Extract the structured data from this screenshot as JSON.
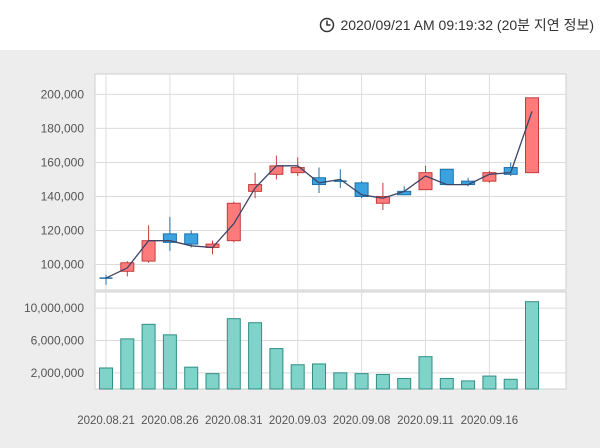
{
  "header": {
    "timestamp": "2020/09/21 AM 09:19:32 (20분 지연 정보)",
    "clock_icon": "clock-icon"
  },
  "colors": {
    "up_fill": "#ff7b7b",
    "up_stroke": "#c43c3c",
    "down_fill": "#3aa3df",
    "down_stroke": "#1f6fa8",
    "volume_fill": "#7fd3c8",
    "volume_stroke": "#2f8f85",
    "ma_line": "#3d4466",
    "grid": "#dcdcdc",
    "panel_bg": "#ededed"
  },
  "chart_data": [
    {
      "type": "candlestick",
      "title": "",
      "ylim": [
        85000,
        212000
      ],
      "y_ticks": [
        "100,000",
        "120,000",
        "140,000",
        "160,000",
        "180,000",
        "200,000"
      ],
      "y_tick_values": [
        100000,
        120000,
        140000,
        160000,
        180000,
        200000
      ],
      "x_tick_labels": [
        "2020.08.21",
        "2020.08.26",
        "2020.08.31",
        "2020.09.03",
        "2020.09.08",
        "2020.09.11",
        "2020.09.16"
      ],
      "x_tick_indices": [
        0,
        3,
        6,
        9,
        12,
        15,
        18
      ],
      "candles": [
        {
          "open": 92000,
          "high": 94000,
          "low": 88000,
          "close": 92000
        },
        {
          "open": 96000,
          "high": 102000,
          "low": 93000,
          "close": 101000
        },
        {
          "open": 102000,
          "high": 123000,
          "low": 101000,
          "close": 114000
        },
        {
          "open": 118000,
          "high": 128000,
          "low": 108000,
          "close": 113000
        },
        {
          "open": 118000,
          "high": 120000,
          "low": 110000,
          "close": 112000
        },
        {
          "open": 110000,
          "high": 114000,
          "low": 106000,
          "close": 112000
        },
        {
          "open": 114000,
          "high": 137000,
          "low": 113000,
          "close": 136000
        },
        {
          "open": 143000,
          "high": 154000,
          "low": 139000,
          "close": 147000
        },
        {
          "open": 153000,
          "high": 164000,
          "low": 150000,
          "close": 158000
        },
        {
          "open": 154000,
          "high": 163000,
          "low": 152000,
          "close": 157000
        },
        {
          "open": 151000,
          "high": 157000,
          "low": 142000,
          "close": 147000
        },
        {
          "open": 149000,
          "high": 156000,
          "low": 145000,
          "close": 149000
        },
        {
          "open": 148000,
          "high": 149000,
          "low": 139000,
          "close": 140000
        },
        {
          "open": 136000,
          "high": 148000,
          "low": 132000,
          "close": 140000
        },
        {
          "open": 143000,
          "high": 146000,
          "low": 141000,
          "close": 141000
        },
        {
          "open": 144000,
          "high": 158000,
          "low": 144000,
          "close": 154000
        },
        {
          "open": 156000,
          "high": 156000,
          "low": 147000,
          "close": 147000
        },
        {
          "open": 149000,
          "high": 151000,
          "low": 146000,
          "close": 147000
        },
        {
          "open": 149000,
          "high": 155000,
          "low": 148000,
          "close": 154000
        },
        {
          "open": 157000,
          "high": 160000,
          "low": 152000,
          "close": 153000
        },
        {
          "open": 154000,
          "high": 198000,
          "low": 154000,
          "close": 198000
        }
      ],
      "ma_line": [
        92000,
        98000,
        114000,
        114000,
        111000,
        110000,
        124000,
        145000,
        158000,
        158000,
        148000,
        150000,
        141000,
        139000,
        143000,
        152000,
        147000,
        147000,
        153000,
        154000,
        190000
      ]
    },
    {
      "type": "bar",
      "title": "",
      "ylim": [
        0,
        12000000
      ],
      "y_ticks": [
        "2,000,000",
        "6,000,000",
        "10,000,000"
      ],
      "y_tick_values": [
        2000000,
        6000000,
        10000000
      ],
      "values": [
        2600000,
        6200000,
        8000000,
        6700000,
        2700000,
        1900000,
        8700000,
        8200000,
        5000000,
        3000000,
        3100000,
        2000000,
        1900000,
        1800000,
        1300000,
        4000000,
        1300000,
        1000000,
        1600000,
        1200000,
        10800000
      ]
    }
  ]
}
